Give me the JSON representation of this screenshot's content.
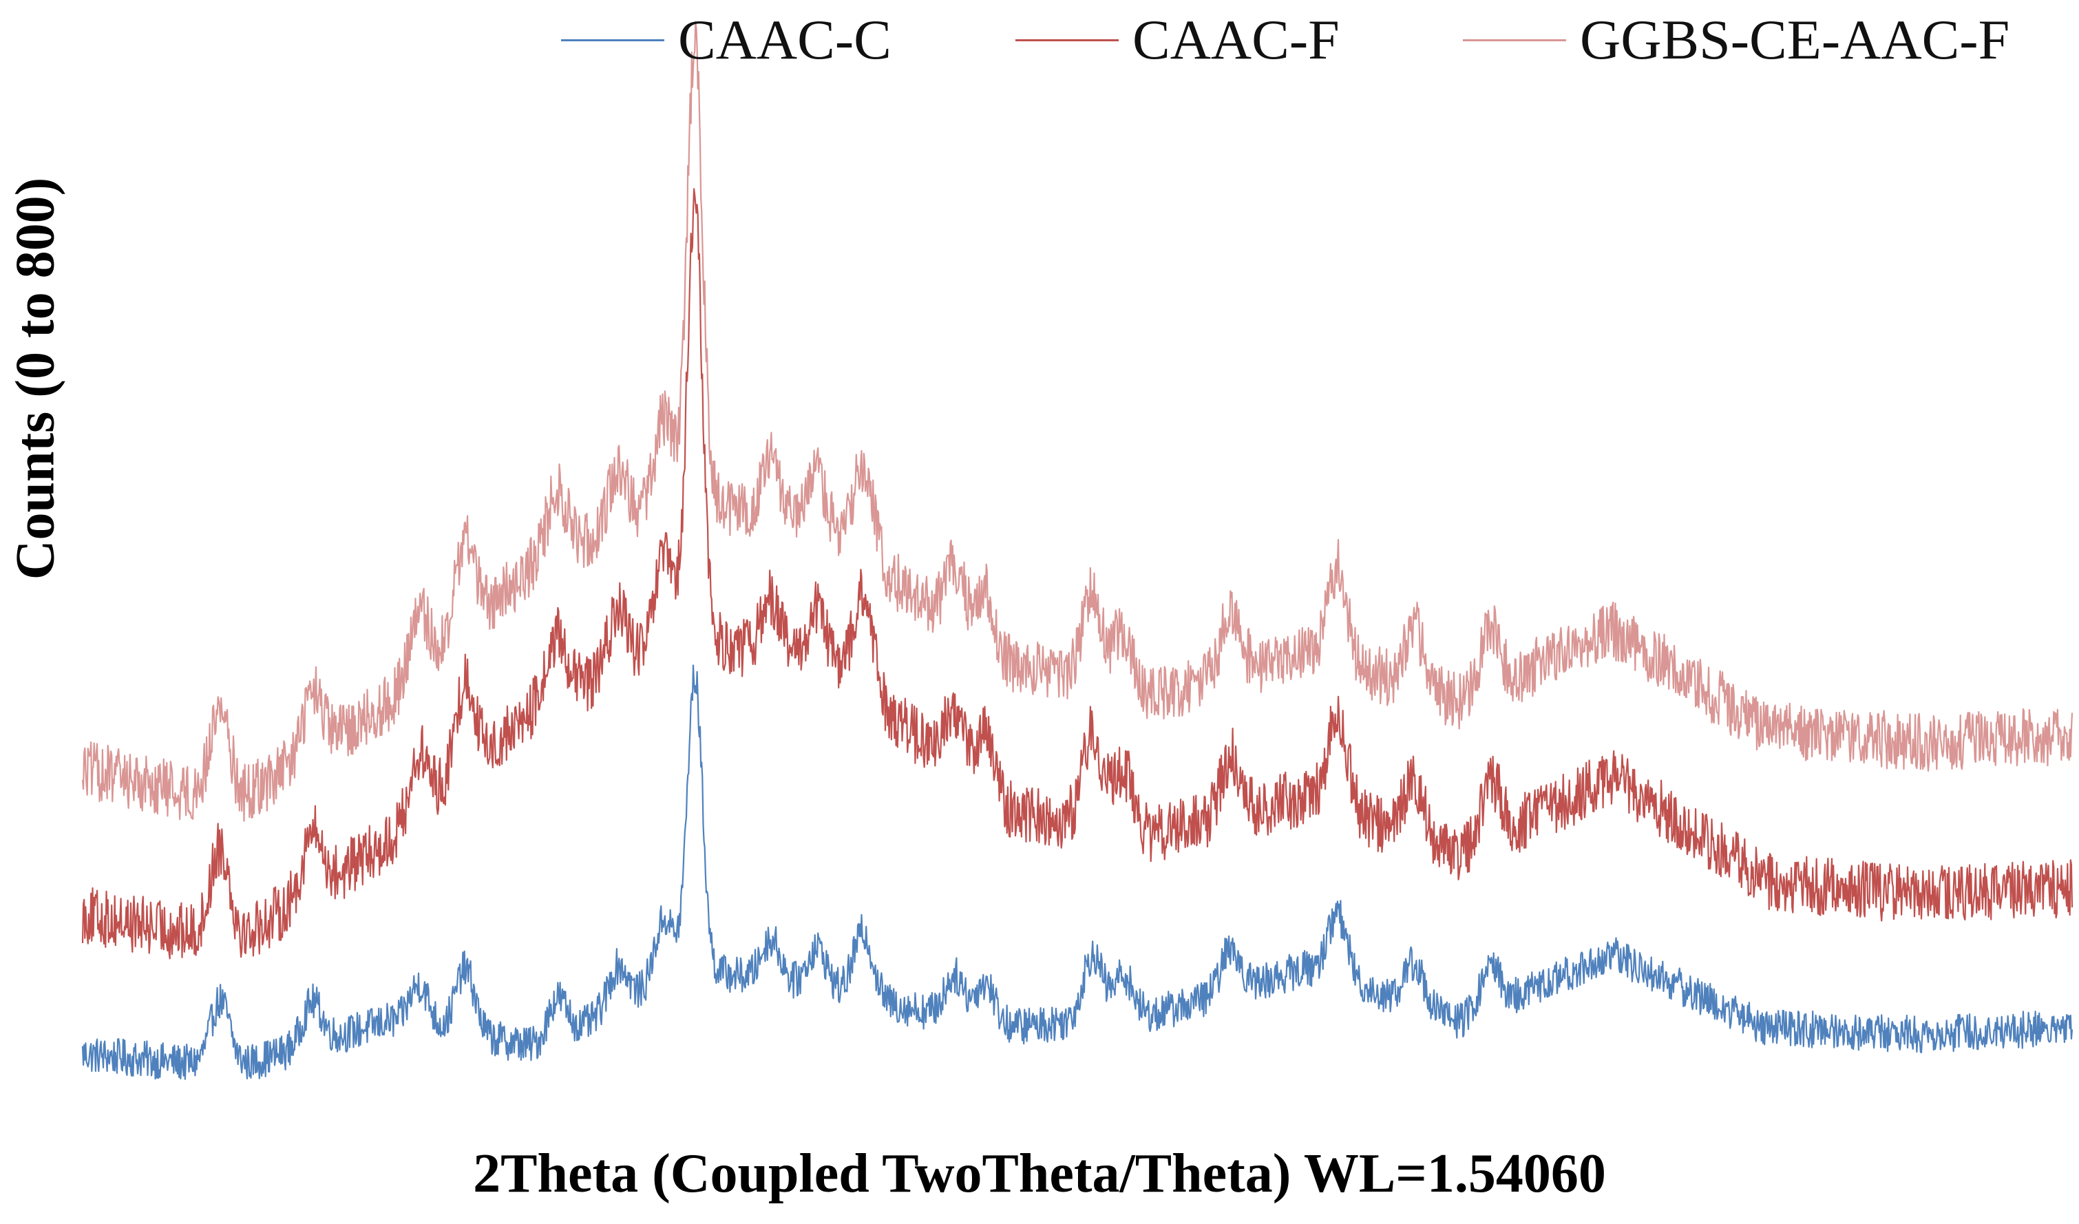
{
  "chart_data": {
    "type": "line",
    "title": "",
    "xlabel": "2Theta (Coupled TwoTheta/Theta) WL=1.54060",
    "ylabel": "Counts (0 to 800)",
    "ylim": [
      0,
      800
    ],
    "grid": false,
    "legend_position": "top",
    "axes_visible": false,
    "series": [
      {
        "name": "CAAC-C",
        "color": "#4f81bd",
        "x": [
          5,
          10,
          15,
          20,
          25,
          30,
          35,
          40,
          45,
          50,
          55,
          60,
          65,
          70
        ],
        "values": [
          15,
          5,
          40,
          20,
          300,
          60,
          35,
          45,
          80,
          40,
          90,
          35,
          30,
          35
        ]
      },
      {
        "name": "CAAC-F",
        "color": "#c0504d",
        "x": [
          5,
          10,
          15,
          20,
          25,
          30,
          35,
          40,
          45,
          50,
          55,
          60,
          65,
          70
        ],
        "values": [
          120,
          100,
          175,
          280,
          655,
          300,
          200,
          180,
          210,
          165,
          225,
          145,
          135,
          140
        ]
      },
      {
        "name": "GGBS-CE-AAC-F",
        "color": "#d99694",
        "x": [
          5,
          10,
          15,
          20,
          25,
          30,
          35,
          40,
          45,
          50,
          55,
          60,
          65,
          70
        ],
        "values": [
          230,
          205,
          280,
          390,
          780,
          400,
          310,
          285,
          320,
          280,
          335,
          260,
          250,
          255
        ]
      }
    ],
    "peaks_2theta": [
      9.5,
      12.5,
      16.0,
      17.5,
      20.5,
      22.5,
      24.0,
      27.5,
      29.0,
      30.5,
      33.5,
      34.5,
      38.0,
      39.0,
      42.5,
      46.0,
      48.5,
      51.0
    ]
  }
}
